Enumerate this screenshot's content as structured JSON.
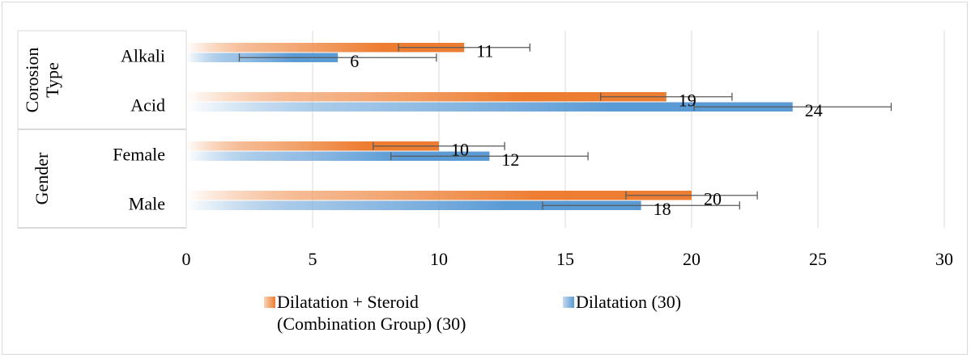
{
  "chart_data": {
    "type": "bar",
    "orientation": "horizontal",
    "groups": [
      {
        "name": "Corosion Type",
        "categories": [
          "Alkali",
          "Acid"
        ]
      },
      {
        "name": "Gender",
        "categories": [
          "Female",
          "Male"
        ]
      }
    ],
    "categories": [
      "Alkali",
      "Acid",
      "Female",
      "Male"
    ],
    "series": [
      {
        "name": "Dilatation + Steroid (Combination Group) (30)",
        "color": "#ed7d31",
        "values": [
          11,
          19,
          10,
          20
        ],
        "error": [
          2.6,
          2.6,
          2.6,
          2.6
        ]
      },
      {
        "name": "Dilatation (30)",
        "color": "#5b9bd5",
        "values": [
          6,
          24,
          12,
          18
        ],
        "error": [
          3.9,
          3.9,
          3.9,
          3.9
        ]
      }
    ],
    "xlim": [
      0,
      30
    ],
    "xticks": [
      0,
      5,
      10,
      15,
      20,
      25,
      30
    ],
    "grid": true,
    "legend": "bottom",
    "data_labels": true
  },
  "legend": {
    "combo_line1": "Dilatation + Steroid",
    "combo_line2": "(Combination Group) (30)",
    "dilatation": "Dilatation (30)"
  }
}
